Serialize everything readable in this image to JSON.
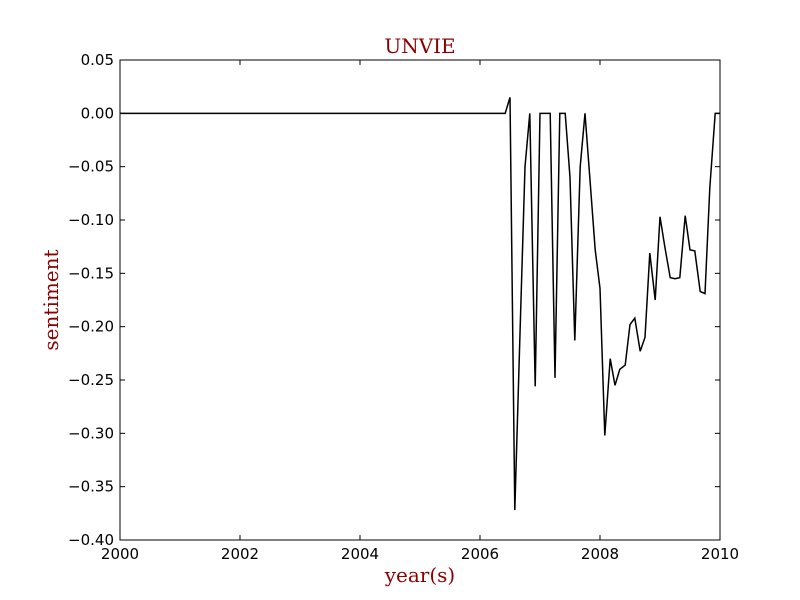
{
  "chart_data": {
    "type": "line",
    "title": "UNVIE",
    "xlabel": "year(s)",
    "ylabel": "sentiment",
    "xlim": [
      2000,
      2010
    ],
    "ylim": [
      -0.4,
      0.05
    ],
    "grid": false,
    "xticks": [
      "2000",
      "2002",
      "2004",
      "2006",
      "2008",
      "2010"
    ],
    "yticks": [
      "0.05",
      "0.00",
      "−0.05",
      "−0.10",
      "−0.15",
      "−0.20",
      "−0.25",
      "−0.30",
      "−0.35",
      "−0.40"
    ],
    "series": [
      {
        "color": "#000000",
        "x": [
          2000.0,
          2006.42,
          2006.5,
          2006.58,
          2006.67,
          2006.75,
          2006.83,
          2006.92,
          2007.0,
          2007.08,
          2007.17,
          2007.25,
          2007.33,
          2007.42,
          2007.5,
          2007.58,
          2007.67,
          2007.75,
          2007.83,
          2007.92,
          2008.0,
          2008.08,
          2008.17,
          2008.25,
          2008.33,
          2008.42,
          2008.5,
          2008.58,
          2008.67,
          2008.75,
          2008.83,
          2008.92,
          2009.0,
          2009.08,
          2009.17,
          2009.25,
          2009.33,
          2009.42,
          2009.5,
          2009.58,
          2009.67,
          2009.75,
          2009.83,
          2009.92,
          2010.0
        ],
        "y": [
          0.0,
          0.0,
          0.015,
          -0.372,
          -0.2,
          -0.05,
          0.0,
          -0.256,
          0.0,
          0.0,
          0.0,
          -0.248,
          0.0,
          0.0,
          -0.06,
          -0.213,
          -0.05,
          0.0,
          -0.06,
          -0.128,
          -0.164,
          -0.302,
          -0.23,
          -0.255,
          -0.24,
          -0.236,
          -0.198,
          -0.192,
          -0.223,
          -0.21,
          -0.131,
          -0.175,
          -0.097,
          -0.125,
          -0.154,
          -0.155,
          -0.154,
          -0.096,
          -0.128,
          -0.129,
          -0.167,
          -0.169,
          -0.07,
          0.0,
          0.0
        ]
      }
    ]
  }
}
